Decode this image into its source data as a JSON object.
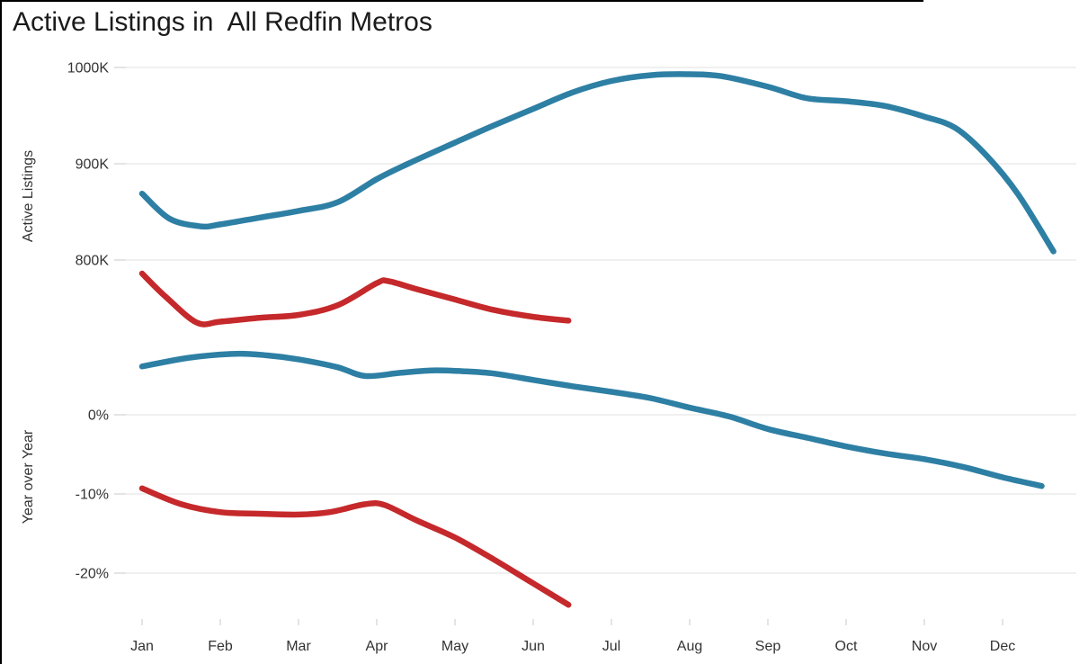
{
  "title": "Active Listings in  All Redfin Metros",
  "colors": {
    "blue": "#2e7fa4",
    "red": "#c5292b",
    "grid": "#ececec",
    "tick": "#d8d8d8",
    "axis_text": "#333333",
    "title_text": "#1b1b1b",
    "border": "#000000"
  },
  "x_axis": {
    "months": [
      "Jan",
      "Feb",
      "Mar",
      "Apr",
      "May",
      "Jun",
      "Jul",
      "Aug",
      "Sep",
      "Oct",
      "Nov",
      "Dec"
    ]
  },
  "panels": [
    {
      "id": "active-listings",
      "axis_title": "Active Listings",
      "ticks": [
        {
          "label": "1000K",
          "value": 1000
        },
        {
          "label": "900K",
          "value": 900
        },
        {
          "label": "800K",
          "value": 800
        }
      ]
    },
    {
      "id": "year-over-year",
      "axis_title": "Year over Year",
      "ticks": [
        {
          "label": "0%",
          "value": 0
        },
        {
          "label": "-10%",
          "value": -10
        },
        {
          "label": "-20%",
          "value": -20
        }
      ]
    }
  ],
  "chart_data": [
    {
      "type": "line",
      "title": "Active Listings in  All Redfin Metros",
      "panel": "Active Listings",
      "ylabel": "Active Listings",
      "y_unit": "thousands of listings (K)",
      "x_unit": "month index, 0 = Jan tick, fractional = weeks within month",
      "ylim": [
        730,
        1010
      ],
      "grid": "horizontal gridlines at 800K, 900K, 1000K",
      "legend": "none shown",
      "series": [
        {
          "name": "blue-line-full-year",
          "color_key": "blue",
          "x": [
            0,
            0.35,
            0.75,
            1.0,
            1.5,
            2.0,
            2.5,
            3.0,
            3.4,
            4.0,
            4.5,
            5.0,
            5.5,
            6.0,
            6.5,
            7.0,
            7.4,
            8.0,
            8.5,
            9.0,
            9.5,
            10.0,
            10.4,
            10.8,
            11.2,
            11.65
          ],
          "values": [
            869,
            843,
            835,
            837,
            844,
            851,
            860,
            884,
            900,
            922,
            940,
            957,
            974,
            986,
            992,
            993,
            991,
            980,
            968,
            965,
            960,
            949,
            937,
            908,
            868,
            809
          ]
        },
        {
          "name": "red-line-partial-year",
          "color_key": "red",
          "x": [
            0,
            0.3,
            0.7,
            1.0,
            1.5,
            2.0,
            2.5,
            3.0,
            3.15,
            3.5,
            4.0,
            4.5,
            5.0,
            5.45
          ],
          "values": [
            786,
            762,
            735,
            736,
            740,
            743,
            753,
            776,
            778,
            770,
            759,
            748,
            741,
            737
          ]
        }
      ]
    },
    {
      "type": "line",
      "panel": "Year over Year",
      "ylabel": "Year over Year",
      "y_unit": "percent",
      "x_unit": "month index, 0 = Jan tick, fractional = weeks within month",
      "ylim": [
        -26,
        9
      ],
      "grid": "horizontal gridlines at 0%, -10%, -20%",
      "legend": "none shown",
      "series": [
        {
          "name": "blue-line-full-year",
          "color_key": "blue",
          "x": [
            0,
            0.6,
            1.2,
            1.6,
            2.0,
            2.5,
            2.85,
            3.3,
            3.7,
            4.1,
            4.5,
            5.0,
            5.5,
            6.0,
            6.5,
            7.0,
            7.5,
            8.0,
            8.5,
            9.0,
            9.5,
            10.0,
            10.5,
            11.0,
            11.5
          ],
          "values": [
            6.1,
            7.2,
            7.7,
            7.5,
            7.0,
            6.0,
            4.9,
            5.3,
            5.6,
            5.5,
            5.2,
            4.4,
            3.6,
            2.9,
            2.1,
            0.9,
            -0.2,
            -1.8,
            -2.9,
            -4.0,
            -4.9,
            -5.6,
            -6.6,
            -7.9,
            -9.0
          ]
        },
        {
          "name": "red-line-partial-year",
          "color_key": "red",
          "x": [
            0,
            0.5,
            1.0,
            1.5,
            2.0,
            2.4,
            2.85,
            3.1,
            3.5,
            4.0,
            4.5,
            5.0,
            5.45
          ],
          "values": [
            -9.3,
            -11.3,
            -12.3,
            -12.5,
            -12.6,
            -12.3,
            -11.3,
            -11.4,
            -13.3,
            -15.5,
            -18.3,
            -21.3,
            -24.0
          ]
        }
      ]
    }
  ]
}
